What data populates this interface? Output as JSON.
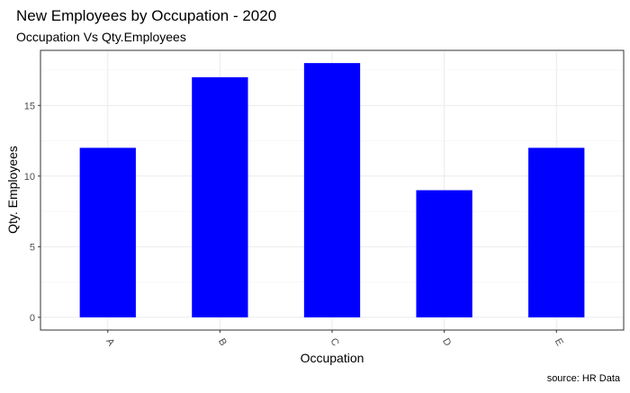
{
  "chart_data": {
    "type": "bar",
    "title": "New Employees by Occupation - 2020",
    "subtitle": "Occupation Vs Qty.Employees",
    "xlabel": "Occupation",
    "ylabel": "Qty. Employees",
    "caption": "source: HR Data",
    "categories": [
      "A",
      "B",
      "C",
      "D",
      "E"
    ],
    "values": [
      12,
      17,
      18,
      9,
      12
    ],
    "ylim": [
      -0.9,
      18.9
    ],
    "y_ticks": [
      0,
      5,
      10,
      15
    ],
    "bar_color": "#0000ff",
    "grid": true,
    "x_tick_label_rotation": "slanted"
  }
}
